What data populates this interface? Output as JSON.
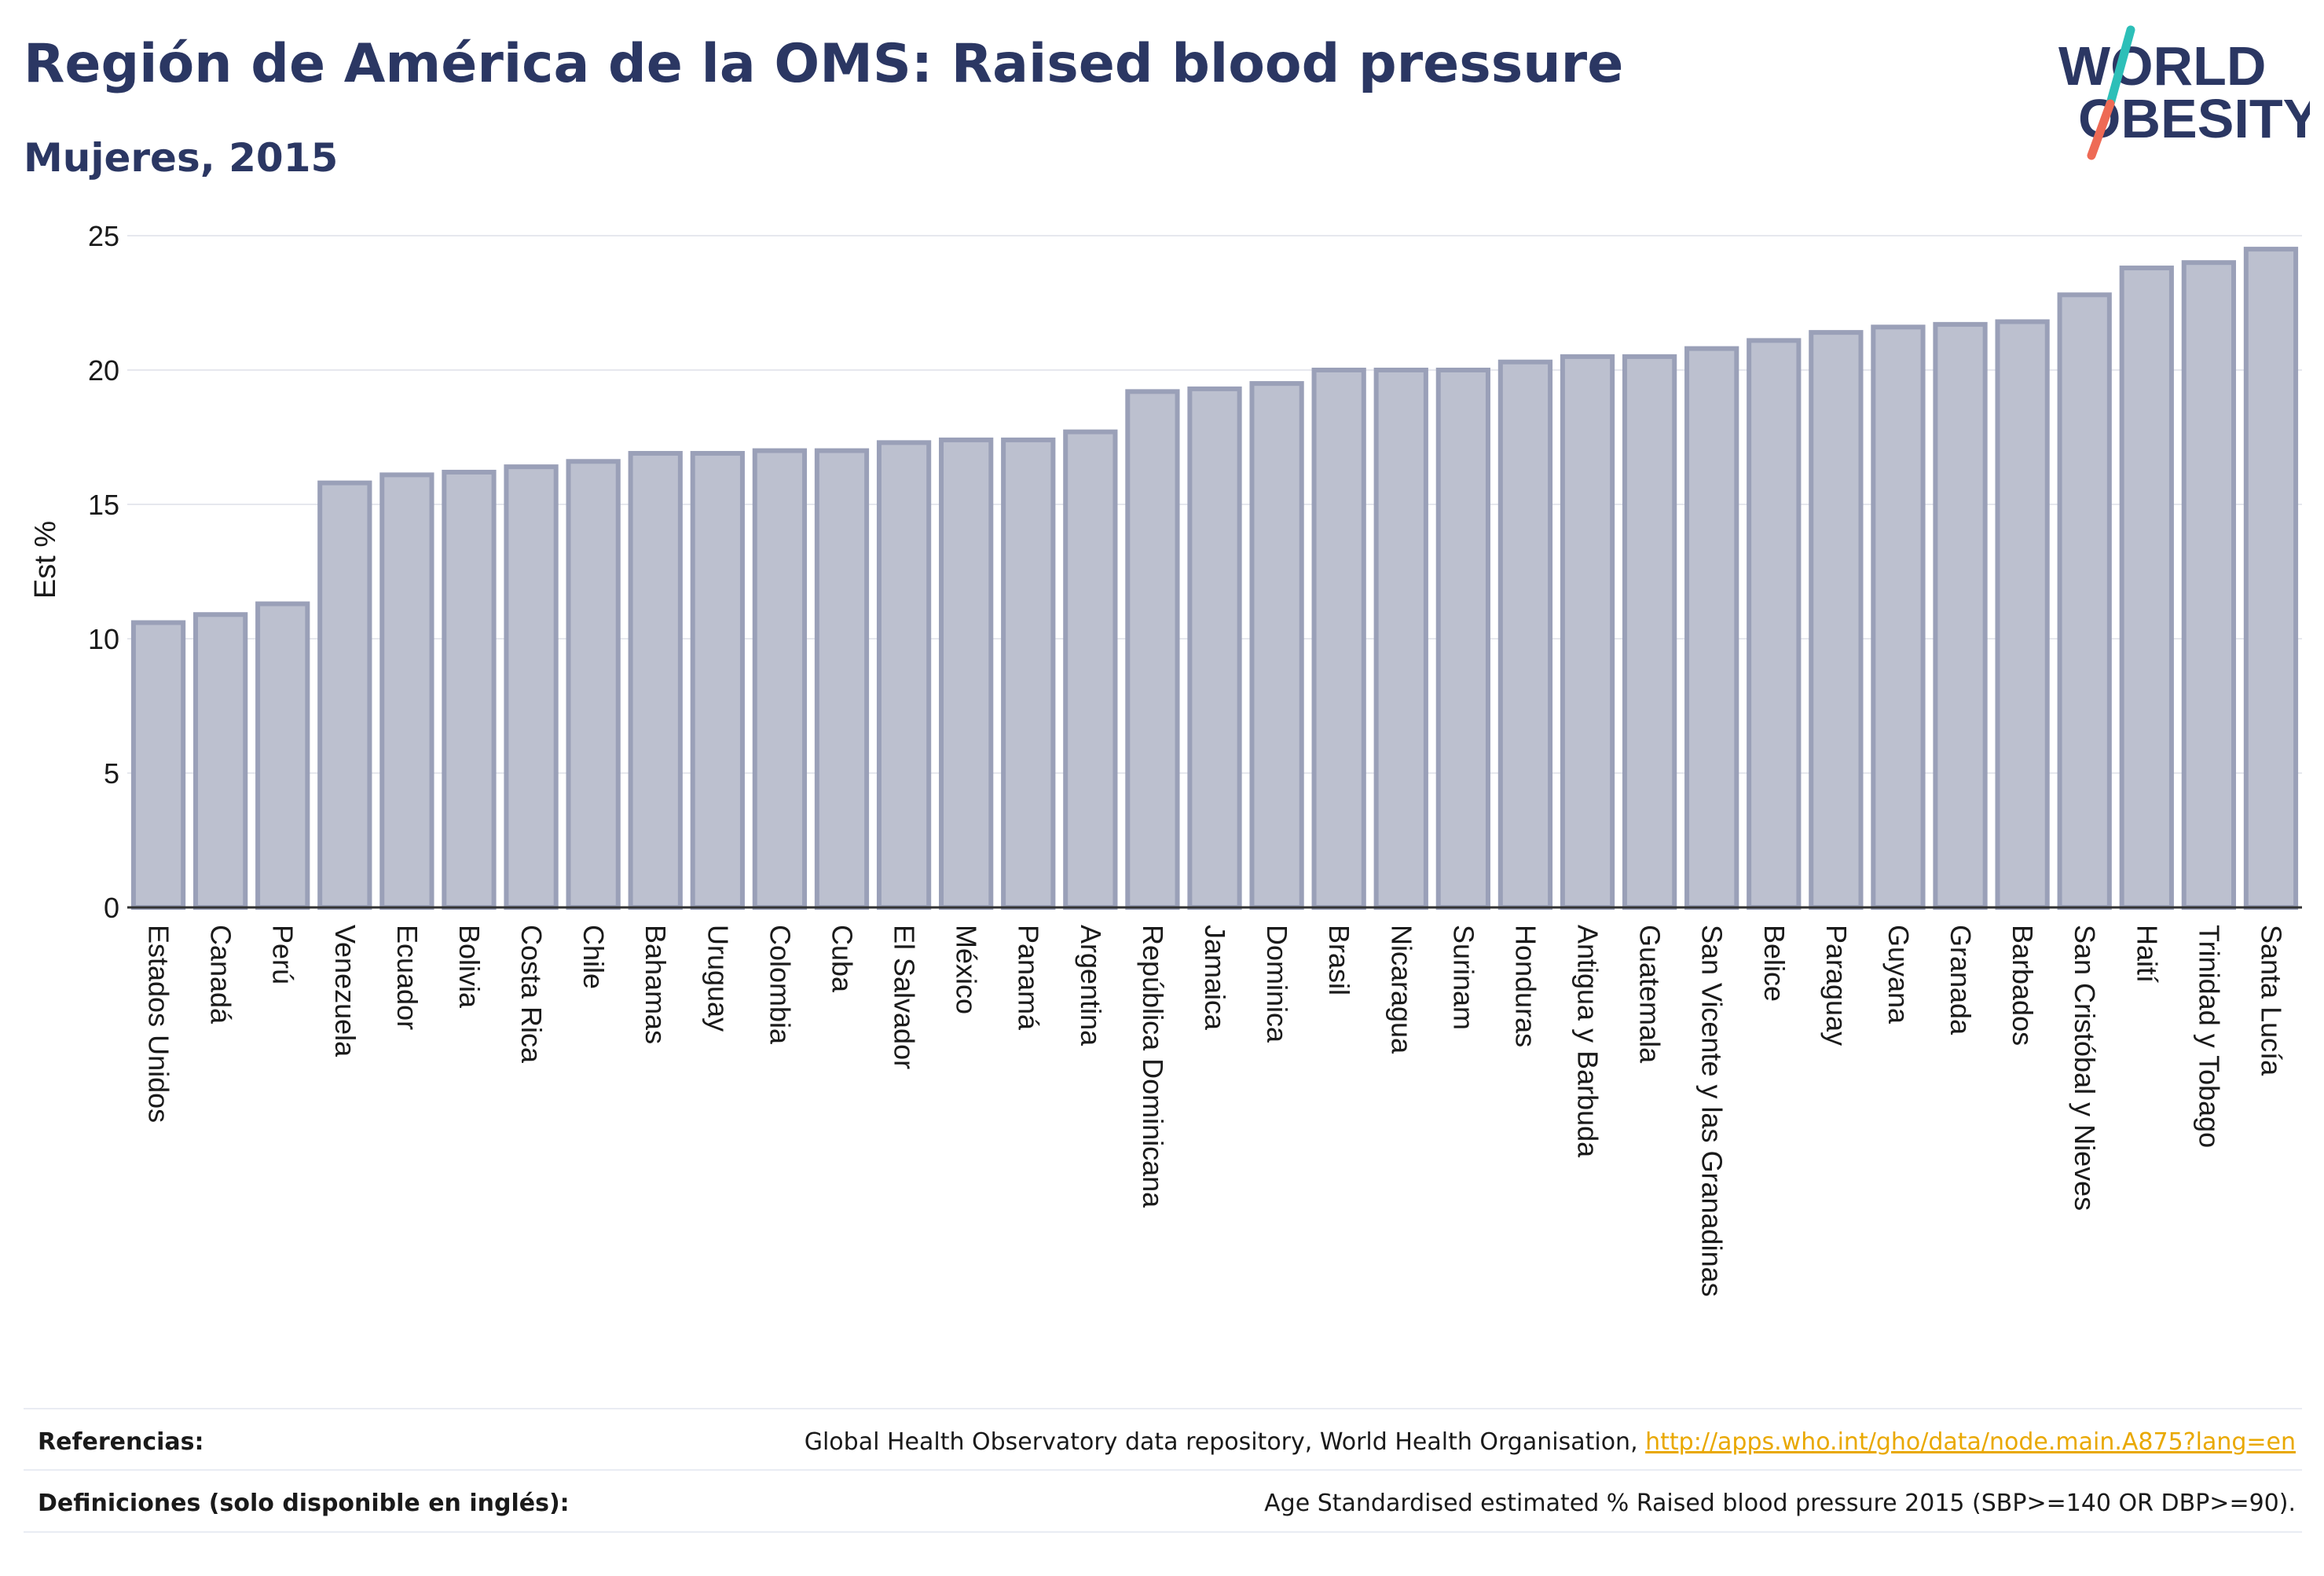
{
  "header": {
    "title": "Región de América de la OMS: Raised blood pressure",
    "subtitle": "Mujeres, 2015"
  },
  "logo": {
    "line1": "WORLD",
    "line2": "OBESITY"
  },
  "colors": {
    "bar_fill": "#bcc0cf",
    "bar_stroke": "#9aa0b8",
    "title": "#2b3763",
    "link": "#e9a800",
    "logo_teal": "#2dbfb8",
    "logo_coral": "#ee6a55"
  },
  "chart_data": {
    "type": "bar",
    "ylabel": "Est %",
    "ylim": [
      0,
      25
    ],
    "yticks": [
      0,
      5,
      10,
      15,
      20,
      25
    ],
    "grid": true,
    "categories": [
      "Estados Unidos",
      "Canadá",
      "Perú",
      "Venezuela",
      "Ecuador",
      "Bolivia",
      "Costa Rica",
      "Chile",
      "Bahamas",
      "Uruguay",
      "Colombia",
      "Cuba",
      "El Salvador",
      "México",
      "Panamá",
      "Argentina",
      "República Dominicana",
      "Jamaica",
      "Dominica",
      "Brasil",
      "Nicaragua",
      "Surinam",
      "Honduras",
      "Antigua y Barbuda",
      "Guatemala",
      "San Vicente y las Granadinas",
      "Belice",
      "Paraguay",
      "Guyana",
      "Granada",
      "Barbados",
      "San Cristóbal y Nieves",
      "Haití",
      "Trinidad y Tobago",
      "Santa Lucía"
    ],
    "values": [
      10.6,
      10.9,
      11.3,
      15.8,
      16.1,
      16.2,
      16.4,
      16.6,
      16.9,
      16.9,
      17.0,
      17.0,
      17.3,
      17.4,
      17.4,
      17.7,
      19.2,
      19.3,
      19.5,
      20.0,
      20.0,
      20.0,
      20.3,
      20.5,
      20.5,
      20.8,
      21.1,
      21.4,
      21.6,
      21.7,
      21.8,
      22.8,
      23.8,
      24.0,
      24.5
    ]
  },
  "footer": {
    "references_label": "Referencias:",
    "references_text": "Global Health Observatory data repository, World Health Organisation, ",
    "references_link": "http://apps.who.int/gho/data/node.main.A875?lang=en",
    "definitions_label": "Definiciones (solo disponible en inglés):",
    "definitions_text": "Age Standardised estimated % Raised blood pressure 2015 (SBP>=140 OR DBP>=90)."
  }
}
